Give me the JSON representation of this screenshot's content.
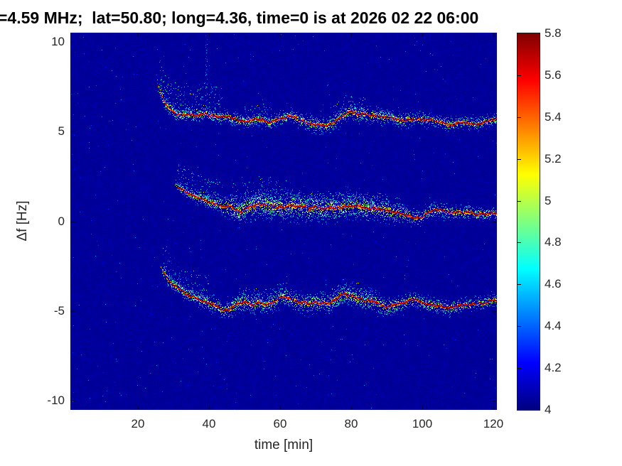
{
  "title": "=4.59 MHz;  lat=50.80; long=4.36, time=0 is at 2026 02 22 06:00",
  "colors": {
    "figure_background": "#ffffff",
    "title_color": "#000000",
    "label_color": "#262626",
    "heatmap_low": "#000080",
    "heatmap_high": "#800000"
  },
  "chart_data": {
    "type": "heatmap",
    "title": "=4.59 MHz;  lat=50.80; long=4.36, time=0 is at 2026 02 22 06:00",
    "xlabel": "time [min]",
    "ylabel": "Δf [Hz]",
    "xlim": [
      1,
      121
    ],
    "ylim": [
      -10.5,
      10.5
    ],
    "xticks": [
      20,
      40,
      60,
      80,
      100,
      120
    ],
    "yticks": [
      10,
      5,
      0,
      -5,
      -10
    ],
    "xtick_labels": [
      "20",
      "40",
      "60",
      "80",
      "100",
      "120"
    ],
    "ytick_labels": [
      "10",
      "5",
      "0",
      "-5",
      "-10"
    ],
    "colormap": "jet",
    "grid": false,
    "background_value": 4.0,
    "colorbar": {
      "vmin": 4,
      "vmax": 5.8,
      "ticks": [
        5.8,
        5.6,
        5.4,
        5.2,
        5,
        4.8,
        4.6,
        4.4,
        4.2,
        4
      ],
      "tick_labels": [
        "5.8",
        "5.6",
        "5.4",
        "5.2",
        "5",
        "4.8",
        "4.6",
        "4.4",
        "4.2",
        "4"
      ]
    },
    "streaks": [
      {
        "t": 39.2,
        "f_top": 10.4,
        "f_bot": 6.5,
        "density": 0.5,
        "strength": 0.55
      },
      {
        "t": 45.2,
        "f_top": -5.3,
        "f_bot": -9.6,
        "density": 0.12,
        "strength": 0.3
      },
      {
        "t": 73.6,
        "f_top": -5.6,
        "f_bot": -10.2,
        "density": 0.1,
        "strength": 0.28
      }
    ],
    "traces": [
      {
        "name": "upper-doppler-trace",
        "points": [
          [
            25.3,
            7.9
          ],
          [
            26,
            7.4
          ],
          [
            27,
            6.9
          ],
          [
            28,
            6.55
          ],
          [
            29.5,
            6.2
          ],
          [
            31,
            6.0
          ],
          [
            33,
            5.9
          ],
          [
            35,
            6.0
          ],
          [
            37,
            5.9
          ],
          [
            39,
            6.05
          ],
          [
            41,
            5.9
          ],
          [
            43,
            5.8
          ],
          [
            45,
            5.85
          ],
          [
            47,
            5.75
          ],
          [
            49,
            5.65
          ],
          [
            51,
            5.6
          ],
          [
            53,
            5.75
          ],
          [
            55,
            5.7
          ],
          [
            57,
            5.55
          ],
          [
            59,
            5.7
          ],
          [
            61,
            5.8
          ],
          [
            63,
            5.9
          ],
          [
            65,
            5.7
          ],
          [
            67,
            5.5
          ],
          [
            69,
            5.4
          ],
          [
            71,
            5.3
          ],
          [
            73,
            5.35
          ],
          [
            75,
            5.5
          ],
          [
            77,
            5.8
          ],
          [
            79,
            6.1
          ],
          [
            81,
            6.05
          ],
          [
            83,
            5.95
          ],
          [
            85,
            5.9
          ],
          [
            87,
            5.9
          ],
          [
            89,
            5.85
          ],
          [
            91,
            5.75
          ],
          [
            93,
            5.65
          ],
          [
            95,
            5.6
          ],
          [
            97,
            5.65
          ],
          [
            99,
            5.7
          ],
          [
            101,
            5.7
          ],
          [
            103,
            5.6
          ],
          [
            105,
            5.5
          ],
          [
            108,
            5.4
          ],
          [
            110,
            5.5
          ],
          [
            112,
            5.55
          ],
          [
            114,
            5.5
          ],
          [
            116,
            5.45
          ],
          [
            118,
            5.5
          ],
          [
            121,
            5.7
          ]
        ],
        "spread": [
          [
            25,
            0.3
          ],
          [
            30,
            0.25
          ],
          [
            50,
            0.25
          ],
          [
            70,
            0.3
          ],
          [
            80,
            0.35
          ],
          [
            90,
            0.3
          ],
          [
            121,
            0.22
          ]
        ],
        "density": [
          [
            25,
            5
          ],
          [
            32,
            4
          ],
          [
            45,
            3.5
          ],
          [
            60,
            4
          ],
          [
            70,
            5
          ],
          [
            80,
            5
          ],
          [
            95,
            3
          ],
          [
            121,
            3
          ]
        ],
        "clouds": [
          {
            "t0": 26,
            "t1": 44,
            "up": 1.7,
            "dens": 3.5
          },
          {
            "t0": 50,
            "t1": 58,
            "up": 0.8,
            "dens": 1.5
          },
          {
            "t0": 75,
            "t1": 84,
            "up": 1.0,
            "dens": 2.5
          },
          {
            "t0": 88,
            "t1": 121,
            "up": 0.35,
            "dens": 1
          }
        ]
      },
      {
        "name": "middle-doppler-trace",
        "points": [
          [
            30.3,
            2.1
          ],
          [
            32,
            1.8
          ],
          [
            34,
            1.55
          ],
          [
            36,
            1.4
          ],
          [
            38,
            1.25
          ],
          [
            40,
            1.1
          ],
          [
            42,
            1.0
          ],
          [
            44,
            0.9
          ],
          [
            46,
            0.8
          ],
          [
            48,
            0.6
          ],
          [
            49,
            0.5
          ],
          [
            50,
            0.75
          ],
          [
            52,
            0.85
          ],
          [
            54,
            1.0
          ],
          [
            56,
            0.95
          ],
          [
            58,
            0.9
          ],
          [
            60,
            0.8
          ],
          [
            62,
            0.75
          ],
          [
            64,
            0.85
          ],
          [
            66,
            0.8
          ],
          [
            68,
            0.75
          ],
          [
            70,
            0.8
          ],
          [
            72,
            0.7
          ],
          [
            74,
            0.75
          ],
          [
            76,
            0.8
          ],
          [
            78,
            0.85
          ],
          [
            80,
            0.9
          ],
          [
            82,
            0.85
          ],
          [
            84,
            0.8
          ],
          [
            86,
            0.75
          ],
          [
            88,
            0.65
          ],
          [
            90,
            0.6
          ],
          [
            92,
            0.5
          ],
          [
            94,
            0.45
          ],
          [
            96,
            0.35
          ],
          [
            98,
            0.25
          ],
          [
            100,
            0.3
          ],
          [
            102,
            0.55
          ],
          [
            104,
            0.65
          ],
          [
            106,
            0.6
          ],
          [
            108,
            0.5
          ],
          [
            110,
            0.5
          ],
          [
            112,
            0.55
          ],
          [
            114,
            0.5
          ],
          [
            116,
            0.45
          ],
          [
            118,
            0.4
          ],
          [
            121,
            0.45
          ]
        ],
        "spread": [
          [
            30,
            0.2
          ],
          [
            42,
            0.3
          ],
          [
            46,
            0.5
          ],
          [
            60,
            0.55
          ],
          [
            75,
            0.5
          ],
          [
            90,
            0.45
          ],
          [
            95,
            0.35
          ],
          [
            100,
            0.3
          ],
          [
            121,
            0.25
          ]
        ],
        "density": [
          [
            30,
            3
          ],
          [
            44,
            5
          ],
          [
            48,
            9
          ],
          [
            58,
            10
          ],
          [
            70,
            9
          ],
          [
            85,
            8
          ],
          [
            92,
            6
          ],
          [
            97,
            4
          ],
          [
            105,
            4
          ],
          [
            121,
            3.5
          ]
        ],
        "clouds": [
          {
            "t0": 31,
            "t1": 44,
            "up": 1.3,
            "dens": 3
          },
          {
            "t0": 46,
            "t1": 62,
            "up": 1.5,
            "dens": 3
          },
          {
            "t0": 63,
            "t1": 95,
            "up": 0.8,
            "dens": 2
          }
        ]
      },
      {
        "name": "lower-doppler-trace",
        "points": [
          [
            26.3,
            -2.4
          ],
          [
            27,
            -2.8
          ],
          [
            28,
            -3.1
          ],
          [
            30,
            -3.55
          ],
          [
            32,
            -3.8
          ],
          [
            34,
            -4.05
          ],
          [
            36,
            -4.2
          ],
          [
            38,
            -4.35
          ],
          [
            40,
            -4.5
          ],
          [
            42,
            -4.7
          ],
          [
            44,
            -4.95
          ],
          [
            46,
            -4.85
          ],
          [
            48,
            -4.6
          ],
          [
            50,
            -4.5
          ],
          [
            52,
            -4.55
          ],
          [
            54,
            -4.45
          ],
          [
            56,
            -4.6
          ],
          [
            58,
            -4.5
          ],
          [
            60,
            -4.25
          ],
          [
            62,
            -4.25
          ],
          [
            64,
            -4.4
          ],
          [
            66,
            -4.5
          ],
          [
            68,
            -4.55
          ],
          [
            70,
            -4.5
          ],
          [
            72,
            -4.55
          ],
          [
            74,
            -4.6
          ],
          [
            76,
            -4.3
          ],
          [
            78,
            -4.0
          ],
          [
            80,
            -4.1
          ],
          [
            82,
            -4.25
          ],
          [
            84,
            -4.35
          ],
          [
            86,
            -4.45
          ],
          [
            88,
            -4.6
          ],
          [
            90,
            -4.75
          ],
          [
            92,
            -4.65
          ],
          [
            94,
            -4.5
          ],
          [
            96,
            -4.45
          ],
          [
            98,
            -4.4
          ],
          [
            100,
            -4.55
          ],
          [
            102,
            -4.6
          ],
          [
            104,
            -4.65
          ],
          [
            106,
            -4.7
          ],
          [
            108,
            -4.8
          ],
          [
            110,
            -4.7
          ],
          [
            112,
            -4.65
          ],
          [
            114,
            -4.6
          ],
          [
            116,
            -4.55
          ],
          [
            118,
            -4.5
          ],
          [
            121,
            -4.35
          ]
        ],
        "spread": [
          [
            26,
            0.3
          ],
          [
            40,
            0.3
          ],
          [
            50,
            0.4
          ],
          [
            60,
            0.35
          ],
          [
            75,
            0.4
          ],
          [
            85,
            0.4
          ],
          [
            100,
            0.3
          ],
          [
            121,
            0.25
          ]
        ],
        "density": [
          [
            26,
            4
          ],
          [
            35,
            4
          ],
          [
            45,
            5
          ],
          [
            55,
            6
          ],
          [
            65,
            5
          ],
          [
            75,
            6
          ],
          [
            85,
            6
          ],
          [
            95,
            4
          ],
          [
            110,
            3.5
          ],
          [
            121,
            3
          ]
        ],
        "clouds": [
          {
            "t0": 27,
            "t1": 40,
            "up": 1.5,
            "dens": 3
          },
          {
            "t0": 48,
            "t1": 62,
            "up": 0.8,
            "dens": 2
          },
          {
            "t0": 74,
            "t1": 86,
            "up": 0.8,
            "dens": 2.5
          }
        ]
      }
    ]
  }
}
